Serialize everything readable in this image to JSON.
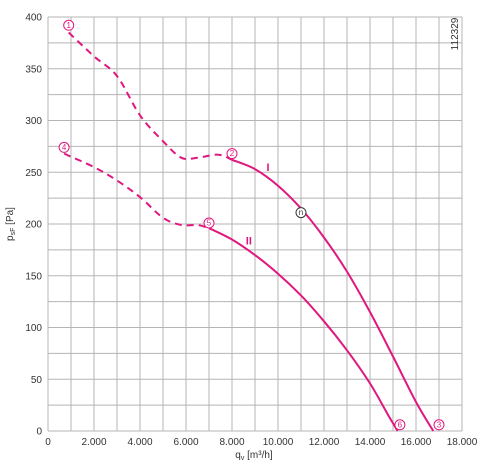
{
  "chart_data": {
    "type": "line",
    "xlabel": "q",
    "xlabel_sub": "v",
    "xlabel_unit": " [m³/h]",
    "ylabel": "p",
    "ylabel_sub": "sF",
    "ylabel_unit": " [Pa]",
    "xlim": [
      0,
      18000
    ],
    "ylim": [
      0,
      400
    ],
    "x_ticks": [
      0,
      2000,
      4000,
      6000,
      8000,
      10000,
      12000,
      14000,
      16000,
      18000
    ],
    "x_tick_labels": [
      "0",
      "2.000",
      "4.000",
      "6.000",
      "8.000",
      "10.000",
      "12.000",
      "14.000",
      "16.000",
      "18.000"
    ],
    "y_ticks": [
      0,
      50,
      100,
      150,
      200,
      250,
      300,
      350,
      400
    ],
    "y_tick_labels": [
      "0",
      "50",
      "100",
      "150",
      "200",
      "250",
      "300",
      "350",
      "400"
    ],
    "grid": true,
    "grid_x_step": 1000,
    "grid_y_step": 25,
    "line_color": "#e0177f",
    "text_color": "#333333",
    "grid_color": "#b5b5b5",
    "code": "112329",
    "series": [
      {
        "name": "I",
        "dashed": [
          [
            900,
            385
          ],
          [
            2000,
            362
          ],
          [
            3000,
            343
          ],
          [
            4000,
            305
          ],
          [
            5000,
            280
          ],
          [
            5800,
            264
          ],
          [
            6500,
            264
          ],
          [
            7400,
            267
          ],
          [
            8000,
            262
          ]
        ],
        "solid": [
          [
            8000,
            262
          ],
          [
            9000,
            253
          ],
          [
            10000,
            237
          ],
          [
            11000,
            215
          ],
          [
            12000,
            187
          ],
          [
            13000,
            154
          ],
          [
            14000,
            115
          ],
          [
            15000,
            72
          ],
          [
            16000,
            28
          ],
          [
            16750,
            0
          ]
        ]
      },
      {
        "name": "II",
        "dashed": [
          [
            700,
            268
          ],
          [
            2000,
            255
          ],
          [
            3000,
            242
          ],
          [
            4000,
            226
          ],
          [
            5000,
            206
          ],
          [
            5800,
            199
          ],
          [
            6500,
            199
          ],
          [
            7000,
            196
          ]
        ],
        "solid": [
          [
            7000,
            196
          ],
          [
            8000,
            185
          ],
          [
            9000,
            170
          ],
          [
            10000,
            152
          ],
          [
            11000,
            131
          ],
          [
            12000,
            106
          ],
          [
            13000,
            78
          ],
          [
            14000,
            46
          ],
          [
            14800,
            15
          ],
          [
            15200,
            0
          ]
        ]
      }
    ],
    "operating_points": [
      {
        "label": "1",
        "x": 900,
        "y": 392
      },
      {
        "label": "2",
        "x": 8000,
        "y": 268
      },
      {
        "label": "3",
        "x": 17000,
        "y": 6
      },
      {
        "label": "4",
        "x": 700,
        "y": 274
      },
      {
        "label": "5",
        "x": 7000,
        "y": 201
      },
      {
        "label": "6",
        "x": 15300,
        "y": 6
      },
      {
        "label": "n",
        "x": 11000,
        "y": 211
      }
    ],
    "curve_labels": [
      {
        "text": "I",
        "x": 9500,
        "y": 251
      },
      {
        "text": "II",
        "x": 8600,
        "y": 180
      }
    ]
  }
}
